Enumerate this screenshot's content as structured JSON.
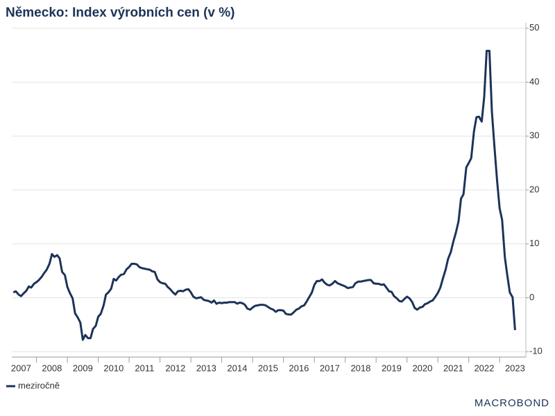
{
  "chart_data": {
    "type": "line",
    "title": "Německo: Index výrobních cen (v %)",
    "source": "MACROBOND",
    "legend": "bottom-left",
    "grid": true,
    "xlim": [
      2007.2,
      2023.85
    ],
    "xticks": [
      2007,
      2008,
      2009,
      2010,
      2011,
      2012,
      2013,
      2014,
      2015,
      2016,
      2017,
      2018,
      2019,
      2020,
      2021,
      2022,
      2023
    ],
    "ylim": [
      -11,
      51
    ],
    "yticks": [
      -10,
      0,
      10,
      20,
      30,
      40,
      50
    ],
    "x": [
      2007.25,
      2007.33,
      2007.42,
      2007.5,
      2007.58,
      2007.67,
      2007.75,
      2007.83,
      2007.92,
      2008.0,
      2008.08,
      2008.17,
      2008.25,
      2008.33,
      2008.42,
      2008.5,
      2008.58,
      2008.67,
      2008.75,
      2008.83,
      2008.92,
      2009.0,
      2009.08,
      2009.17,
      2009.25,
      2009.33,
      2009.42,
      2009.5,
      2009.58,
      2009.67,
      2009.75,
      2009.83,
      2009.92,
      2010.0,
      2010.08,
      2010.17,
      2010.25,
      2010.33,
      2010.42,
      2010.5,
      2010.58,
      2010.67,
      2010.75,
      2010.83,
      2010.92,
      2011.0,
      2011.08,
      2011.17,
      2011.25,
      2011.33,
      2011.42,
      2011.5,
      2011.58,
      2011.67,
      2011.75,
      2011.83,
      2011.92,
      2012.0,
      2012.08,
      2012.17,
      2012.25,
      2012.33,
      2012.42,
      2012.5,
      2012.58,
      2012.67,
      2012.75,
      2012.83,
      2012.92,
      2013.0,
      2013.08,
      2013.17,
      2013.25,
      2013.33,
      2013.42,
      2013.5,
      2013.58,
      2013.67,
      2013.75,
      2013.83,
      2013.92,
      2014.0,
      2014.08,
      2014.17,
      2014.25,
      2014.33,
      2014.42,
      2014.5,
      2014.58,
      2014.67,
      2014.75,
      2014.83,
      2014.92,
      2015.0,
      2015.08,
      2015.17,
      2015.25,
      2015.33,
      2015.42,
      2015.5,
      2015.58,
      2015.67,
      2015.75,
      2015.83,
      2015.92,
      2016.0,
      2016.08,
      2016.17,
      2016.25,
      2016.33,
      2016.42,
      2016.5,
      2016.58,
      2016.67,
      2016.75,
      2016.83,
      2016.92,
      2017.0,
      2017.08,
      2017.17,
      2017.25,
      2017.33,
      2017.42,
      2017.5,
      2017.58,
      2017.67,
      2017.75,
      2017.83,
      2017.92,
      2018.0,
      2018.08,
      2018.17,
      2018.25,
      2018.33,
      2018.42,
      2018.5,
      2018.58,
      2018.67,
      2018.75,
      2018.83,
      2018.92,
      2019.0,
      2019.08,
      2019.17,
      2019.25,
      2019.33,
      2019.42,
      2019.5,
      2019.58,
      2019.67,
      2019.75,
      2019.83,
      2019.92,
      2020.0,
      2020.08,
      2020.17,
      2020.25,
      2020.33,
      2020.42,
      2020.5,
      2020.58,
      2020.67,
      2020.75,
      2020.83,
      2020.92,
      2021.0,
      2021.08,
      2021.17,
      2021.25,
      2021.33,
      2021.42,
      2021.5,
      2021.58,
      2021.67,
      2021.75,
      2021.83,
      2021.92,
      2022.0,
      2022.08,
      2022.17,
      2022.25,
      2022.33,
      2022.42,
      2022.5,
      2022.58,
      2022.67,
      2022.75,
      2022.83,
      2022.92,
      2023.0,
      2023.08,
      2023.17,
      2023.25,
      2023.33,
      2023.42,
      2023.5
    ],
    "series": [
      {
        "name": "meziročně",
        "color": "#1c3358",
        "values": [
          1.0,
          1.2,
          0.6,
          0.3,
          0.8,
          1.3,
          2.1,
          1.9,
          2.6,
          2.9,
          3.3,
          3.9,
          4.6,
          5.2,
          6.3,
          8.1,
          7.6,
          7.9,
          7.3,
          4.8,
          4.2,
          2.0,
          0.9,
          -0.1,
          -2.9,
          -3.6,
          -4.6,
          -7.8,
          -6.9,
          -7.5,
          -7.5,
          -5.8,
          -5.2,
          -3.5,
          -3.0,
          -1.5,
          0.6,
          1.0,
          1.7,
          3.5,
          3.2,
          3.9,
          4.3,
          4.4,
          5.3,
          5.7,
          6.3,
          6.3,
          6.2,
          5.7,
          5.5,
          5.4,
          5.3,
          5.2,
          4.9,
          4.8,
          3.4,
          2.9,
          2.7,
          2.6,
          2.0,
          1.6,
          1.0,
          0.6,
          1.2,
          1.3,
          1.2,
          1.5,
          1.6,
          1.0,
          0.2,
          -0.1,
          0.0,
          0.1,
          -0.4,
          -0.5,
          -0.6,
          -0.9,
          -0.5,
          -1.1,
          -0.9,
          -1.0,
          -0.9,
          -0.9,
          -0.8,
          -0.8,
          -0.8,
          -1.1,
          -0.9,
          -1.0,
          -1.3,
          -2.0,
          -2.2,
          -1.8,
          -1.5,
          -1.4,
          -1.3,
          -1.3,
          -1.4,
          -1.7,
          -2.0,
          -2.2,
          -2.6,
          -2.3,
          -2.3,
          -2.4,
          -3.0,
          -3.1,
          -3.1,
          -2.7,
          -2.2,
          -2.0,
          -1.6,
          -1.4,
          -0.7,
          0.1,
          1.0,
          2.4,
          3.1,
          3.1,
          3.4,
          2.8,
          2.4,
          2.3,
          2.6,
          3.1,
          2.7,
          2.5,
          2.3,
          2.1,
          1.8,
          1.9,
          2.0,
          2.7,
          3.0,
          3.0,
          3.1,
          3.2,
          3.3,
          3.3,
          2.7,
          2.6,
          2.6,
          2.4,
          2.5,
          1.9,
          1.2,
          1.1,
          0.3,
          -0.1,
          -0.6,
          -0.7,
          -0.2,
          0.2,
          -0.1,
          -0.8,
          -1.9,
          -2.2,
          -1.8,
          -1.7,
          -1.2,
          -1.0,
          -0.7,
          -0.5,
          0.2,
          0.9,
          1.9,
          3.7,
          5.2,
          7.2,
          8.5,
          10.4,
          12.0,
          14.2,
          18.4,
          19.2,
          24.2,
          25.0,
          25.9,
          30.9,
          33.5,
          33.6,
          32.7,
          37.2,
          45.8,
          45.8,
          34.5,
          28.2,
          21.6,
          16.6,
          14.5,
          7.5,
          4.1,
          1.0,
          0.1,
          -6.0
        ]
      }
    ]
  }
}
